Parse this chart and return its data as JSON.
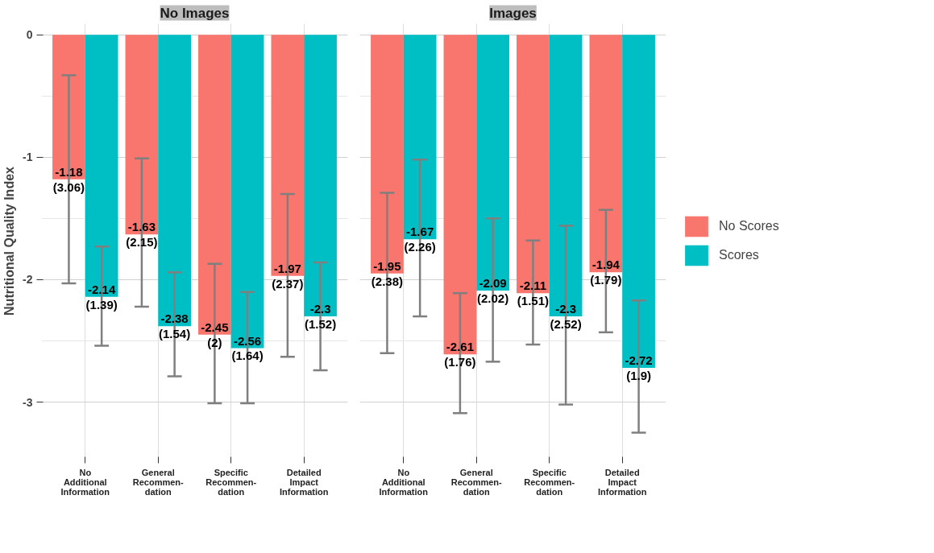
{
  "chart_data": [
    {
      "type": "bar",
      "title": "No Images",
      "ylabel": "Nutritional Quality Index",
      "categories": [
        "No\nAdditional\nInformation",
        "General\nRecommen-\ndation",
        "Specific\nRecommen-\ndation",
        "Detailed\nImpact\nInformation"
      ],
      "ylim": [
        -3.46,
        0.09
      ],
      "yticks": [
        0,
        -1,
        -2,
        -3
      ],
      "grid": true,
      "legend": false,
      "series": [
        {
          "color": "#f8766d",
          "values": [
            -1.18,
            -1.63,
            -2.45,
            -1.97
          ],
          "value_labels": [
            "-1.18\n(3.06)",
            "-1.63\n(2.15)",
            "-2.45\n(2)",
            "-1.97\n(2.37)"
          ],
          "errors": [
            [
              -2.03,
              -0.33
            ],
            [
              -2.22,
              -1.01
            ],
            [
              -3.01,
              -1.87
            ],
            [
              -2.63,
              -1.3
            ]
          ]
        },
        {
          "color": "#00bfc4",
          "values": [
            -2.14,
            -2.38,
            -2.56,
            -2.3
          ],
          "value_labels": [
            "-2.14\n(1.39)",
            "-2.38\n(1.54)",
            "-2.56\n(1.64)",
            "-2.3\n(1.52)"
          ],
          "errors": [
            [
              -2.54,
              -1.73
            ],
            [
              -2.79,
              -1.94
            ],
            [
              -3.01,
              -2.1
            ],
            [
              -2.74,
              -1.86
            ]
          ]
        }
      ]
    },
    {
      "type": "bar",
      "title": "Images",
      "categories": [
        "No\nAdditional\nInformation",
        "General\nRecommen-\ndation",
        "Specific\nRecommen-\ndation",
        "Detailed\nImpact\nInformation"
      ],
      "ylim": [
        -3.46,
        0.09
      ],
      "tick_labels": "x",
      "grid": true,
      "legend": "right",
      "series": [
        {
          "name": "No Scores",
          "color": "#f8766d",
          "values": [
            -1.95,
            -2.61,
            -2.11,
            -1.94
          ],
          "value_labels": [
            "-1.95\n(2.38)",
            "-2.61\n(1.76)",
            "-2.11\n(1.51)",
            "-1.94\n(1.79)"
          ],
          "errors": [
            [
              -2.6,
              -1.29
            ],
            [
              -3.09,
              -2.11
            ],
            [
              -2.53,
              -1.68
            ],
            [
              -2.43,
              -1.43
            ]
          ]
        },
        {
          "name": "Scores",
          "color": "#00bfc4",
          "values": [
            -1.67,
            -2.09,
            -2.3,
            -2.72
          ],
          "value_labels": [
            "-1.67\n(2.26)",
            "-2.09\n(2.02)",
            "-2.3\n(2.52)",
            "-2.72\n(1.9)"
          ],
          "errors": [
            [
              -2.3,
              -1.02
            ],
            [
              -2.67,
              -1.5
            ],
            [
              -3.02,
              -1.56
            ],
            [
              -3.25,
              -2.17
            ]
          ]
        }
      ]
    }
  ]
}
